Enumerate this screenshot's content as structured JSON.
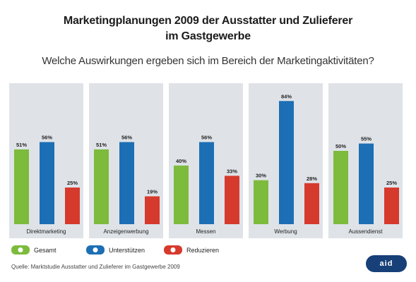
{
  "title_line1": "Marketingplanungen 2009 der Ausstatter und Zulieferer",
  "title_line2": "im Gastgewerbe",
  "question": "Welche Auswirkungen ergeben sich im Bereich der Marketingaktivitäten?",
  "footer": "Quelle: Marktstudie Ausstatter und Zulieferer im Gastgewerbe 2009",
  "logo_text": "aid",
  "colors": {
    "Gesamt": "#7dbb3c",
    "Unterstützen": "#1c6fb5",
    "Reduzieren": "#d63a2c",
    "panel": "#dfe3e8"
  },
  "chart_data": {
    "type": "bar",
    "categories": [
      "Direktmarketing",
      "Anzeigenwerbung",
      "Messen",
      "Werbung",
      "Aussendienst"
    ],
    "series": [
      {
        "name": "Gesamt",
        "values": [
          51,
          51,
          40,
          30,
          50
        ]
      },
      {
        "name": "Unterstützen",
        "values": [
          56,
          56,
          56,
          84,
          55
        ]
      },
      {
        "name": "Reduzieren",
        "values": [
          25,
          19,
          33,
          28,
          25
        ]
      }
    ],
    "value_labels": [
      [
        "51%",
        "56%",
        "25%"
      ],
      [
        "51%",
        "56%",
        "19%"
      ],
      [
        "40%",
        "56%",
        "33%"
      ],
      [
        "30%",
        "84%",
        "28%"
      ],
      [
        "50%",
        "55%",
        "25%"
      ]
    ],
    "ylim": [
      0,
      100
    ],
    "legend_position": "bottom-left",
    "grid": false
  }
}
